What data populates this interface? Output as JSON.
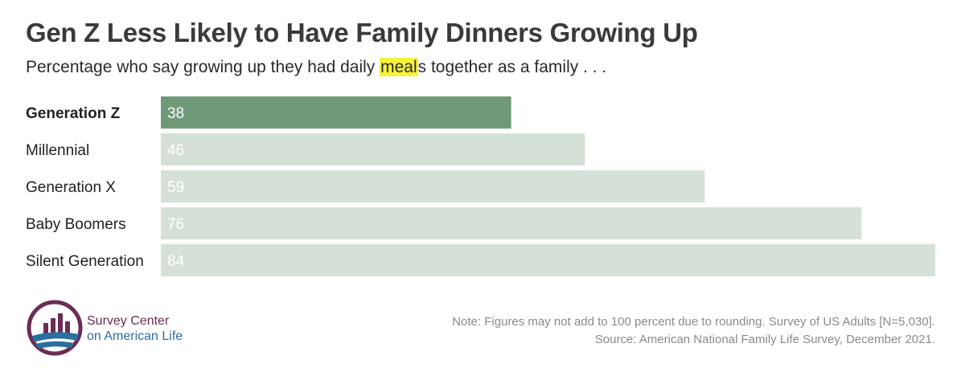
{
  "title_pre": "Gen Z Less Likely to Have Family Dinners Growing Up",
  "subtitle_pre": "Percentage who say growing up they had daily ",
  "subtitle_highlight": "meal",
  "subtitle_post": "s together as a family . . .",
  "chart_data": {
    "type": "bar",
    "orientation": "horizontal",
    "categories": [
      "Generation Z",
      "Millennial",
      "Generation X",
      "Baby Boomers",
      "Silent Generation"
    ],
    "values": [
      38,
      46,
      59,
      76,
      84
    ],
    "highlighted_category": "Generation Z",
    "xlim": [
      0,
      84
    ],
    "grid": false,
    "colors": {
      "highlight": "#6f9a78",
      "default": "#d5e1d6",
      "label_on_highlight": "#ffffff",
      "label_on_default": "#ffffff"
    }
  },
  "brand": {
    "line1": "Survey Center",
    "line2": "on American Life",
    "logo_icon": "bar-chart-globe-logo"
  },
  "note": {
    "line1": "Note: Figures may not add to 100 percent due to rounding. Survey of US Adults [N=5,030].",
    "line2": "Source: American National Family Life Survey, December 2021."
  },
  "colors": {
    "title": "#3a3a3a",
    "highlight_marker": "#f7f23a",
    "brand_purple": "#6b2c55",
    "brand_blue": "#2a6fa0"
  }
}
